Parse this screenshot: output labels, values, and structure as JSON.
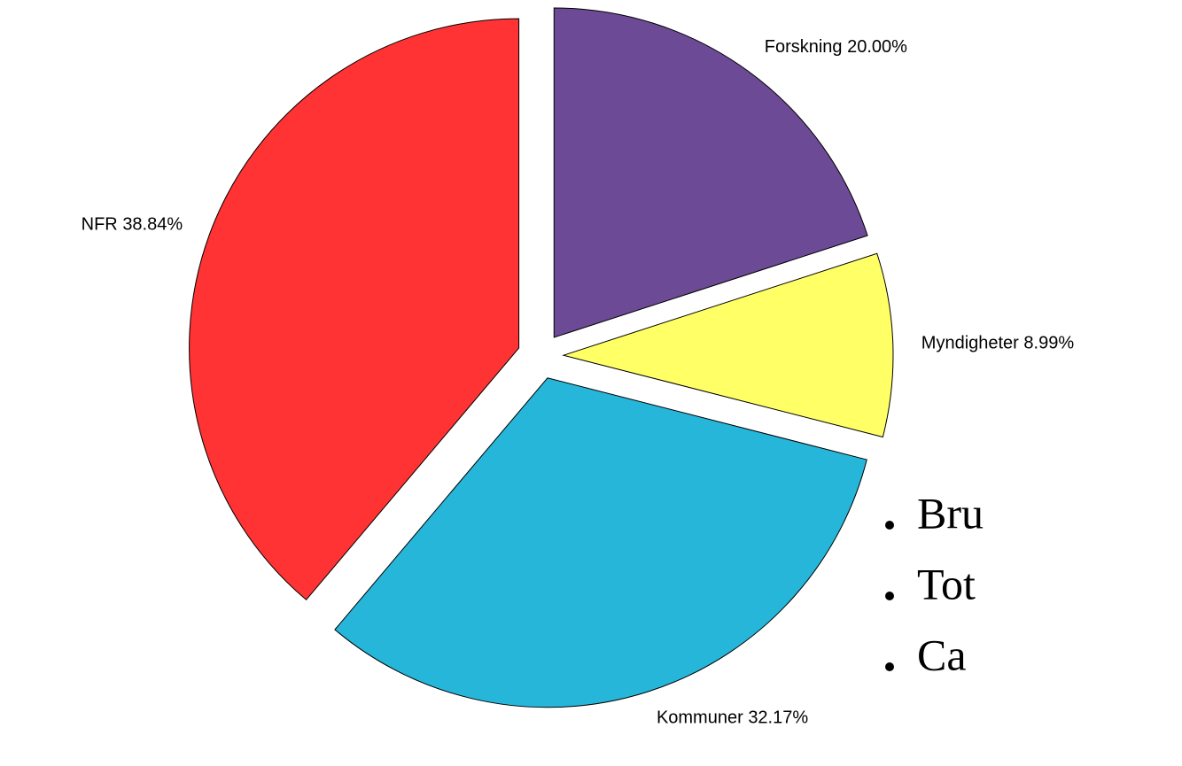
{
  "chart_data": {
    "type": "pie",
    "categories": [
      "Forskning",
      "Myndigheter",
      "Kommuner",
      "NFR"
    ],
    "values": [
      20.0,
      8.99,
      32.17,
      38.84
    ],
    "value_labels": [
      "20.00%",
      "8.99%",
      "32.17%",
      "38.84%"
    ],
    "colors": [
      "#6c4a96",
      "#ffff66",
      "#26b6d9",
      "#ff3333"
    ]
  },
  "bullets": [
    "Bru",
    "Tot",
    "Ca"
  ]
}
